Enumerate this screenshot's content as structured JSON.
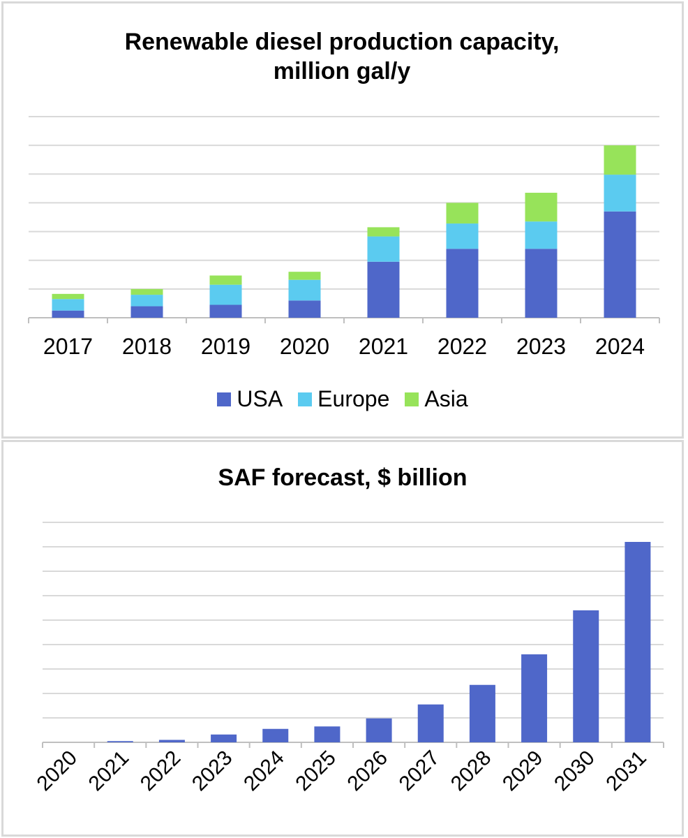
{
  "colors": {
    "usa": "#4f67c9",
    "europe": "#5bcbf0",
    "asia": "#97e35a",
    "grid": "#d9d9d9",
    "axis": "#bfbfbf",
    "saf": "#4f67c9"
  },
  "chart_data": [
    {
      "type": "bar",
      "stacked": true,
      "title": "Renewable diesel production capacity, million gal/y",
      "title_lines": [
        "Renewable diesel production capacity,",
        "million gal/y"
      ],
      "categories": [
        "2017",
        "2018",
        "2019",
        "2020",
        "2021",
        "2022",
        "2023",
        "2024"
      ],
      "series": [
        {
          "name": "USA",
          "values": [
            0.25,
            0.4,
            0.45,
            0.6,
            1.95,
            2.4,
            2.4,
            3.7
          ]
        },
        {
          "name": "Europe",
          "values": [
            0.4,
            0.4,
            0.7,
            0.72,
            0.88,
            0.88,
            0.95,
            1.28
          ]
        },
        {
          "name": "Asia",
          "values": [
            0.18,
            0.2,
            0.32,
            0.28,
            0.32,
            0.72,
            1.0,
            1.02
          ]
        }
      ],
      "ylim": [
        0,
        7
      ],
      "grid": true,
      "legend": "bottom"
    },
    {
      "type": "bar",
      "title": "SAF forecast, $ billion",
      "categories": [
        "2020",
        "2021",
        "2022",
        "2023",
        "2024",
        "2025",
        "2026",
        "2027",
        "2028",
        "2029",
        "2030",
        "2031"
      ],
      "values": [
        0,
        0.05,
        0.1,
        0.32,
        0.55,
        0.65,
        0.98,
        1.55,
        2.35,
        3.6,
        5.4,
        8.2
      ],
      "ylim": [
        0,
        9
      ],
      "grid": true,
      "x_tick_rotation": "-45"
    }
  ]
}
